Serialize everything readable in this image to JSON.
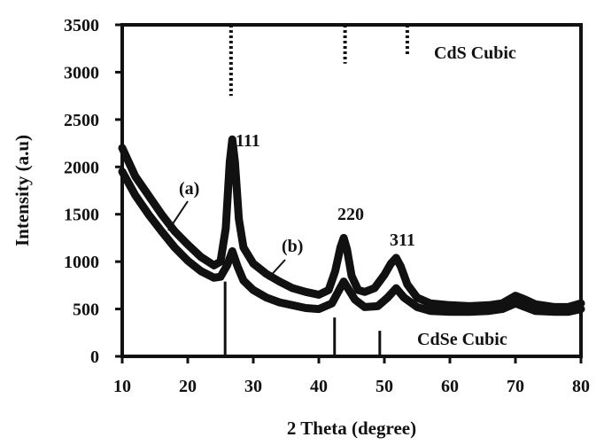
{
  "chart_data": {
    "type": "line",
    "title": "",
    "xlabel": "2 Theta (degree)",
    "ylabel": "Intensity (a.u)",
    "xlim": [
      10,
      80
    ],
    "ylim": [
      0,
      3500
    ],
    "xticks": [
      10,
      20,
      30,
      40,
      50,
      60,
      70,
      80
    ],
    "yticks": [
      0,
      500,
      1000,
      1500,
      2000,
      2500,
      3000,
      3500
    ],
    "grid": false,
    "legend": null,
    "series": [
      {
        "name": "(a)",
        "x": [
          10,
          12,
          14,
          16,
          18,
          20,
          22,
          24,
          25,
          25.8,
          26.4,
          26.8,
          27.2,
          27.8,
          28.5,
          30,
          32,
          34,
          36,
          38,
          40,
          41.5,
          42.5,
          43.3,
          43.8,
          44.3,
          45,
          46,
          47,
          48.5,
          50,
          51,
          51.8,
          52.5,
          53.5,
          55,
          57,
          60,
          63,
          66,
          68,
          70,
          71.5,
          73,
          76,
          78,
          80
        ],
        "y": [
          2200,
          1900,
          1700,
          1500,
          1320,
          1180,
          1050,
          960,
          1000,
          1350,
          2050,
          2290,
          2050,
          1450,
          1150,
          980,
          870,
          790,
          720,
          680,
          650,
          700,
          900,
          1150,
          1250,
          1130,
          850,
          700,
          680,
          720,
          860,
          980,
          1040,
          950,
          760,
          620,
          560,
          540,
          530,
          540,
          560,
          640,
          600,
          550,
          520,
          520,
          560
        ]
      },
      {
        "name": "(b)",
        "x": [
          10,
          12,
          14,
          16,
          18,
          20,
          22,
          24,
          25,
          26,
          26.8,
          27.6,
          28.5,
          30,
          32,
          34,
          36,
          38,
          40,
          42,
          43.8,
          45.5,
          47,
          49,
          50.5,
          51.8,
          53,
          55,
          57,
          60,
          63,
          66,
          68,
          70,
          71.5,
          73,
          76,
          78,
          80
        ],
        "y": [
          1950,
          1700,
          1500,
          1320,
          1150,
          1010,
          900,
          830,
          840,
          960,
          1110,
          950,
          800,
          700,
          620,
          570,
          540,
          510,
          500,
          560,
          790,
          600,
          520,
          530,
          620,
          720,
          620,
          520,
          480,
          470,
          470,
          480,
          500,
          560,
          520,
          480,
          470,
          470,
          500
        ]
      }
    ],
    "reference_lines": [
      {
        "name": "CdSe Cubic",
        "style": "solid",
        "positions": [
          25.7,
          42.4,
          49.3
        ],
        "heights": [
          790,
          410,
          270
        ]
      },
      {
        "name": "CdS Cubic",
        "style": "dotted",
        "positions": [
          26.6,
          44.0,
          53.5
        ],
        "from_top_to": [
          2750,
          3090,
          3190
        ]
      }
    ],
    "annotations": [
      {
        "text": "111",
        "x": 28.5,
        "y": 2240
      },
      {
        "text": "220",
        "x": 43.5,
        "y": 1500
      },
      {
        "text": "311",
        "x": 52.0,
        "y": 1240
      },
      {
        "text": "(a)",
        "x": 21.5,
        "y": 1820
      },
      {
        "text": "(b)",
        "x": 32.5,
        "y": 1180
      },
      {
        "text": "CdS Cubic",
        "x": 61.5,
        "y": 3300
      },
      {
        "text": "CdSe Cubic",
        "x": 65.0,
        "y": 180
      }
    ]
  },
  "labels": {
    "xlabel": "2 Theta (degree)",
    "ylabel": "Intensity (a.u)",
    "cds": "CdS  Cubic",
    "cdse": "CdSe Cubic",
    "peak_111": "111",
    "peak_220": "220",
    "peak_311": "311",
    "curve_a": "(a)",
    "curve_b": "(b)"
  }
}
